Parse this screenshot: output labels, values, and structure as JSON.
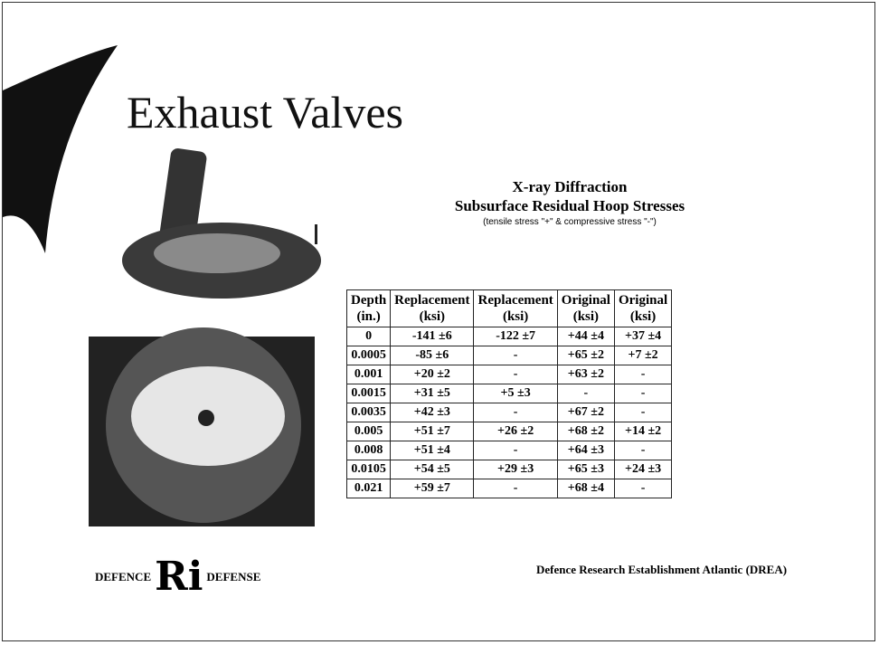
{
  "slide": {
    "title": "Exhaust Valves",
    "table_title": [
      "X-ray Diffraction",
      "Subsurface Residual Hoop Stresses"
    ],
    "note": "(tensile stress \"+\" & compressive stress \"-\")",
    "table": {
      "header": [
        [
          "Depth",
          "(in.)"
        ],
        [
          "Replacement",
          "(ksi)"
        ],
        [
          "Replacement",
          "(ksi)"
        ],
        [
          "Original",
          "(ksi)"
        ],
        [
          "Original",
          "(ksi)"
        ]
      ],
      "rows": [
        [
          "0",
          "-141 ±6",
          "-122 ±7",
          "+44 ±4",
          "+37 ±4"
        ],
        [
          "0.0005",
          "-85 ±6",
          "-",
          "+65 ±2",
          "+7 ±2"
        ],
        [
          "0.001",
          "+20 ±2",
          "-",
          "+63 ±2",
          "-"
        ],
        [
          "0.0015",
          "+31 ±5",
          "+5 ±3",
          "-",
          "-"
        ],
        [
          "0.0035",
          "+42 ±3",
          "-",
          "+67 ±2",
          "-"
        ],
        [
          "0.005",
          "+51 ±7",
          "+26 ±2",
          "+68 ±2",
          "+14 ±2"
        ],
        [
          "0.008",
          "+51 ±4",
          "-",
          "+64 ±3",
          "-"
        ],
        [
          "0.0105",
          "+54 ±5",
          "+29 ±3",
          "+65 ±3",
          "+24 ±3"
        ],
        [
          "0.021",
          "+59 ±7",
          "-",
          "+68 ±4",
          "-"
        ]
      ]
    },
    "logo": {
      "left": "DEFENCE",
      "mark": "Ri",
      "right": "DEFENSE"
    },
    "footer": "Defence Research Establishment Atlantic (DREA)"
  }
}
